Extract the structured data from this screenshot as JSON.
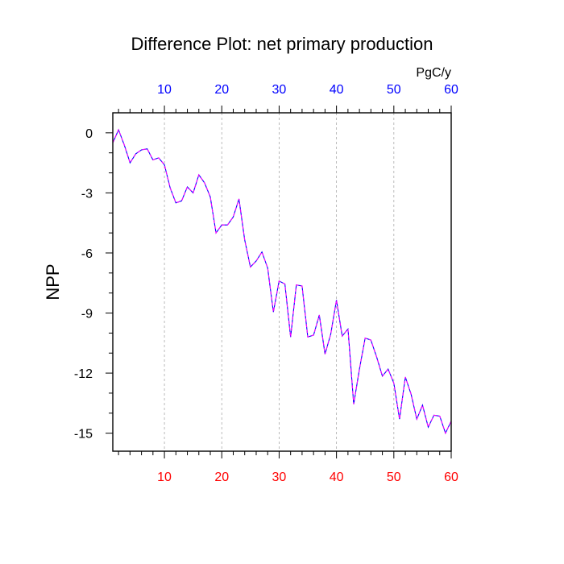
{
  "chart_data": {
    "type": "line",
    "title": "Difference Plot: net primary production",
    "ylabel": "NPP",
    "top_axis_unit": "PgC/y",
    "xlim": [
      1,
      60
    ],
    "ylim": [
      -15.9,
      1.0
    ],
    "x_ticks": [
      10,
      20,
      30,
      40,
      50,
      60
    ],
    "y_ticks": [
      0,
      -3,
      -6,
      -9,
      -12,
      -15
    ],
    "x_tick_labels": [
      "10",
      "20",
      "30",
      "40",
      "50",
      "60"
    ],
    "y_tick_labels": [
      "0",
      "-3",
      "-6",
      "-9",
      "-12",
      "-15"
    ],
    "grid": "vertical dotted at major x ticks",
    "colors": {
      "bottom_axis_labels": "#ff0000",
      "top_axis_labels": "#0000ff",
      "line_dash_1": "#0000ff",
      "line_dash_2": "#ff00ff",
      "grid": "#aaaaaa",
      "frame": "#000000"
    },
    "series": [
      {
        "x": [
          1,
          2,
          3,
          4,
          5,
          6,
          7,
          8,
          9,
          10,
          11,
          12,
          13,
          14,
          15,
          16,
          17,
          18,
          19,
          20,
          21,
          22,
          23,
          24,
          25,
          26,
          27,
          28,
          29,
          30,
          31,
          32,
          33,
          34,
          35,
          36,
          37,
          38,
          39,
          40,
          41,
          42,
          43,
          44,
          45,
          46,
          47,
          48,
          49,
          50,
          51,
          52,
          53,
          54,
          55,
          56,
          57,
          58,
          59,
          60
        ],
        "values": [
          -0.5,
          0.15,
          -0.6,
          -1.5,
          -1.05,
          -0.85,
          -0.8,
          -1.35,
          -1.25,
          -1.6,
          -2.75,
          -3.5,
          -3.4,
          -2.7,
          -3.0,
          -2.1,
          -2.5,
          -3.2,
          -5.0,
          -4.6,
          -4.6,
          -4.2,
          -3.3,
          -5.35,
          -6.7,
          -6.4,
          -5.95,
          -6.75,
          -8.95,
          -7.4,
          -7.55,
          -10.2,
          -7.6,
          -7.65,
          -10.2,
          -10.1,
          -9.1,
          -11.05,
          -10.05,
          -8.35,
          -10.15,
          -9.8,
          -13.55,
          -11.8,
          -10.25,
          -10.35,
          -11.2,
          -12.15,
          -11.8,
          -12.5,
          -14.3,
          -12.2,
          -13.05,
          -14.3,
          -13.6,
          -14.7,
          -14.1,
          -14.15,
          -15.0,
          -14.4
        ]
      }
    ]
  }
}
